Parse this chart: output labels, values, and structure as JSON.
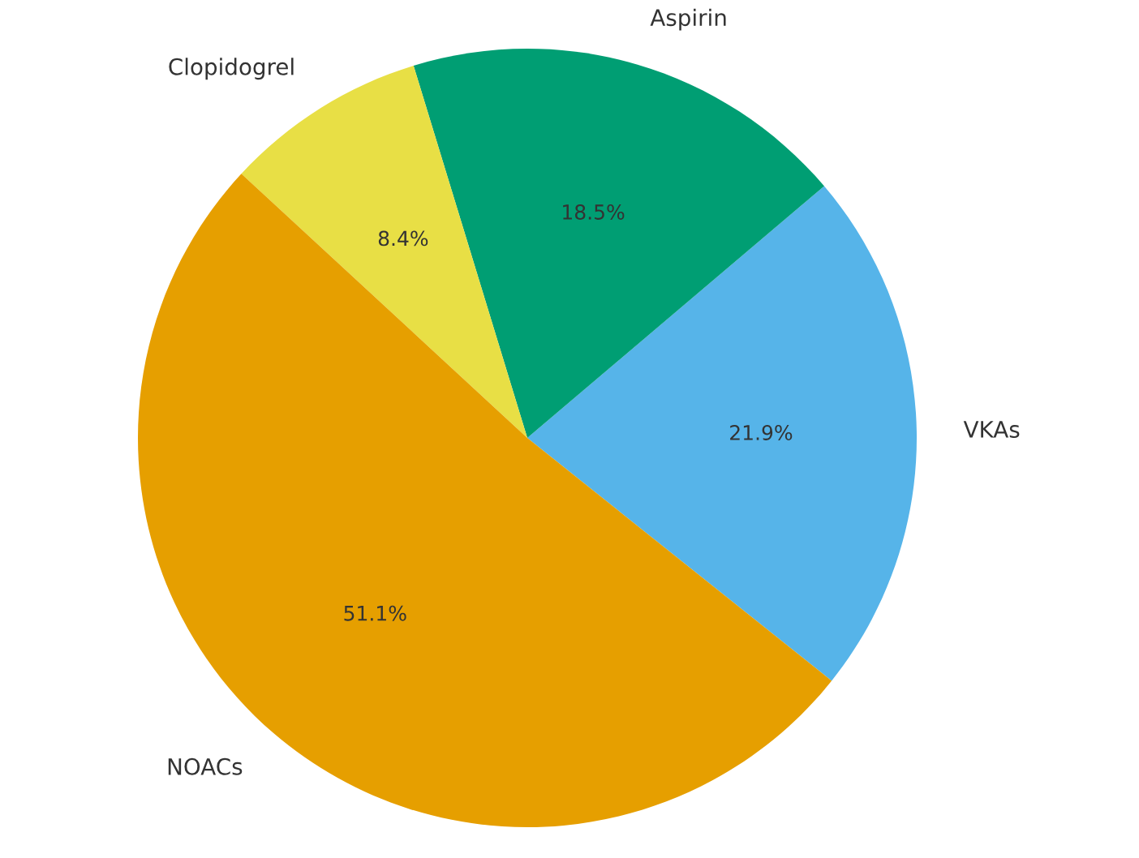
{
  "chart_data": {
    "type": "pie",
    "categories": [
      "VKAs",
      "Aspirin",
      "Clopidogrel",
      "NOACs"
    ],
    "values": [
      21.9,
      18.5,
      8.4,
      51.1
    ],
    "value_labels": [
      "21.9%",
      "18.5%",
      "8.4%",
      "51.1%"
    ],
    "colors": [
      "#56b4e9",
      "#009e73",
      "#e8df45",
      "#e69f00"
    ]
  }
}
